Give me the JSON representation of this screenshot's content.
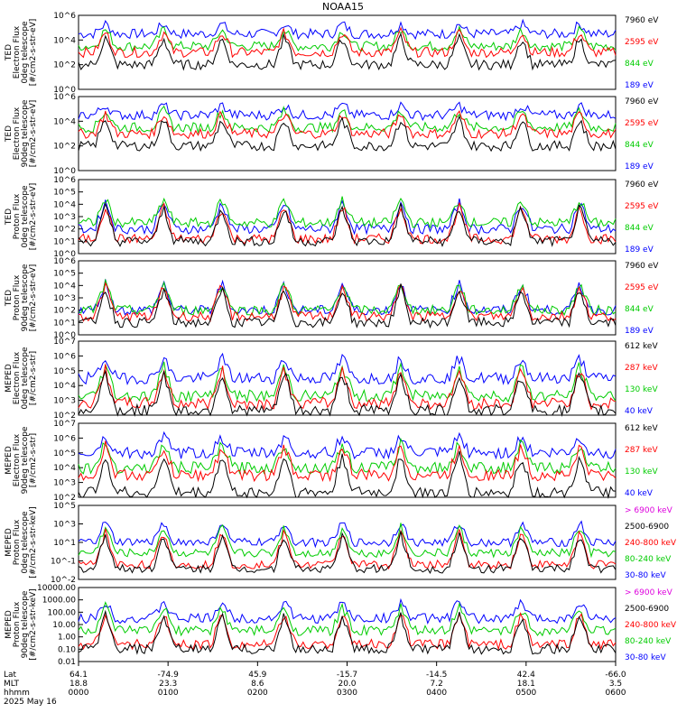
{
  "title": "NOAA15",
  "panels": [
    {
      "ylabel": [
        "TED",
        "Electron Flux",
        "0deg telescope",
        "[#/cm2-s-str-eV]"
      ],
      "ymin_exp": 0,
      "ymax_exp": 6,
      "tick_labels": [
        "10^0",
        "10^2",
        "10^4",
        "10^6"
      ],
      "legend": [
        {
          "text": "7960 eV",
          "color": "#000000"
        },
        {
          "text": "2595 eV",
          "color": "#ff0000"
        },
        {
          "text": "844 eV",
          "color": "#00cc00"
        },
        {
          "text": "189 eV",
          "color": "#0000ff"
        }
      ]
    },
    {
      "ylabel": [
        "TED",
        "Electron Flux",
        "90deg telescope",
        "[#/cm2-s-str-eV]"
      ],
      "ymin_exp": 0,
      "ymax_exp": 6,
      "tick_labels": [
        "10^0",
        "10^2",
        "10^4",
        "10^6"
      ],
      "legend": [
        {
          "text": "7960 eV",
          "color": "#000000"
        },
        {
          "text": "2595 eV",
          "color": "#ff0000"
        },
        {
          "text": "844 eV",
          "color": "#00cc00"
        },
        {
          "text": "189 eV",
          "color": "#0000ff"
        }
      ]
    },
    {
      "ylabel": [
        "TED",
        "Proton Flux",
        "0deg telescope",
        "[#/cm2-s-str-eV]"
      ],
      "ymin_exp": 0,
      "ymax_exp": 6,
      "tick_labels": [
        "10^0",
        "10^1",
        "10^2",
        "10^3",
        "10^4",
        "10^5",
        "10^6"
      ],
      "legend": [
        {
          "text": "7960 eV",
          "color": "#000000"
        },
        {
          "text": "2595 eV",
          "color": "#ff0000"
        },
        {
          "text": "844 eV",
          "color": "#00cc00"
        },
        {
          "text": "189 eV",
          "color": "#0000ff"
        }
      ]
    },
    {
      "ylabel": [
        "TED",
        "Proton Flux",
        "90deg telescope",
        "[#/cm2-s-str-eV]"
      ],
      "ymin_exp": 0,
      "ymax_exp": 6,
      "tick_labels": [
        "10^0",
        "10^1",
        "10^2",
        "10^3",
        "10^4",
        "10^5",
        "10^6"
      ],
      "legend": [
        {
          "text": "7960 eV",
          "color": "#000000"
        },
        {
          "text": "2595 eV",
          "color": "#ff0000"
        },
        {
          "text": "844 eV",
          "color": "#00cc00"
        },
        {
          "text": "189 eV",
          "color": "#0000ff"
        }
      ]
    },
    {
      "ylabel": [
        "MEPED",
        "Electron Flux",
        "0deg telescope",
        "[#/cm2-s-str]"
      ],
      "ymin_exp": 2,
      "ymax_exp": 7,
      "tick_labels": [
        "10^2",
        "10^3",
        "10^4",
        "10^5",
        "10^6",
        "10^7"
      ],
      "legend": [
        {
          "text": "612 keV",
          "color": "#000000"
        },
        {
          "text": "287 keV",
          "color": "#ff0000"
        },
        {
          "text": "130 keV",
          "color": "#00cc00"
        },
        {
          "text": "40 keV",
          "color": "#0000ff"
        }
      ]
    },
    {
      "ylabel": [
        "MEPED",
        "Electron Flux",
        "90deg telescope",
        "[#/cm2-s-str]"
      ],
      "ymin_exp": 2,
      "ymax_exp": 7,
      "tick_labels": [
        "10^2",
        "10^3",
        "10^4",
        "10^5",
        "10^6",
        "10^7"
      ],
      "legend": [
        {
          "text": "612 keV",
          "color": "#000000"
        },
        {
          "text": "287 keV",
          "color": "#ff0000"
        },
        {
          "text": "130 keV",
          "color": "#00cc00"
        },
        {
          "text": "40 keV",
          "color": "#0000ff"
        }
      ]
    },
    {
      "ylabel": [
        "MEPED",
        "Proton Flux",
        "0deg telescope",
        "[#/cm2-s-str-keV]"
      ],
      "ymin_exp": -2,
      "ymax_exp": 5,
      "tick_labels": [
        "10^-2",
        "10^-1",
        "10^1",
        "10^3",
        "10^5"
      ],
      "legend": [
        {
          "text": "> 6900 keV",
          "color": "#dd00dd"
        },
        {
          "text": "2500-6900",
          "color": "#000000"
        },
        {
          "text": "240-800 keV",
          "color": "#ff0000"
        },
        {
          "text": "80-240 keV",
          "color": "#00cc00"
        },
        {
          "text": "30-80 keV",
          "color": "#0000ff"
        }
      ]
    },
    {
      "ylabel": [
        "MEPED",
        "Proton Flux",
        "90deg telescope",
        "[#/cm2-s-str-keV]"
      ],
      "ymin_exp": -2,
      "ymax_exp": 4,
      "tick_labels": [
        "0.01",
        "0.10",
        "1.00",
        "10.00",
        "100.00",
        "1000.00",
        "10000.00"
      ],
      "legend": [
        {
          "text": "> 6900 keV",
          "color": "#dd00dd"
        },
        {
          "text": "2500-6900",
          "color": "#000000"
        },
        {
          "text": "240-800 keV",
          "color": "#ff0000"
        },
        {
          "text": "80-240 keV",
          "color": "#00cc00"
        },
        {
          "text": "30-80 keV",
          "color": "#0000ff"
        }
      ]
    }
  ],
  "xaxis": {
    "row_labels": [
      "Lat",
      "MLT",
      "hhmm",
      "2025 May 16"
    ],
    "ticks": [
      {
        "lat": "64.1",
        "mlt": "18.8",
        "hhmm": "0000"
      },
      {
        "lat": "-74.9",
        "mlt": "23.3",
        "hhmm": "0100"
      },
      {
        "lat": "45.9",
        "mlt": "8.6",
        "hhmm": "0200"
      },
      {
        "lat": "-15.7",
        "mlt": "20.0",
        "hhmm": "0300"
      },
      {
        "lat": "-14.5",
        "mlt": "7.2",
        "hhmm": "0400"
      },
      {
        "lat": "42.4",
        "mlt": "18.1",
        "hhmm": "0500"
      },
      {
        "lat": "-66.0",
        "mlt": "3.5",
        "hhmm": "0600"
      }
    ]
  },
  "chart_data": {
    "type": "line",
    "title": "NOAA15",
    "x_hours": [
      0,
      6
    ],
    "x_tick_labels": [
      "0000",
      "0100",
      "0200",
      "0300",
      "0400",
      "0500",
      "0600"
    ],
    "pass_centers_hours": [
      0.3,
      0.95,
      1.6,
      2.3,
      2.95,
      3.6,
      4.25,
      4.95,
      5.6
    ],
    "panel_levels": [
      {
        "black": 2.0,
        "red": 3.0,
        "green": 3.5,
        "blue": 4.5
      },
      {
        "black": 2.0,
        "red": 3.0,
        "green": 3.5,
        "blue": 4.5
      },
      {
        "black": 1.0,
        "red": 1.2,
        "green": 2.5,
        "blue": 2.0
      },
      {
        "black": 1.0,
        "red": 1.5,
        "green": 2.0,
        "blue": 2.0
      },
      {
        "black": 2.3,
        "red": 2.8,
        "green": 3.3,
        "blue": 4.5
      },
      {
        "black": 2.3,
        "red": 3.5,
        "green": 4.0,
        "blue": 5.0
      },
      {
        "black": -1.0,
        "red": -0.6,
        "green": 0.5,
        "blue": 1.5
      },
      {
        "black": -1.0,
        "red": -0.6,
        "green": 0.5,
        "blue": 1.5
      }
    ]
  },
  "colors": {
    "black": "#000000",
    "red": "#ff0000",
    "green": "#00cc00",
    "blue": "#0000ff",
    "magenta": "#dd00dd"
  }
}
